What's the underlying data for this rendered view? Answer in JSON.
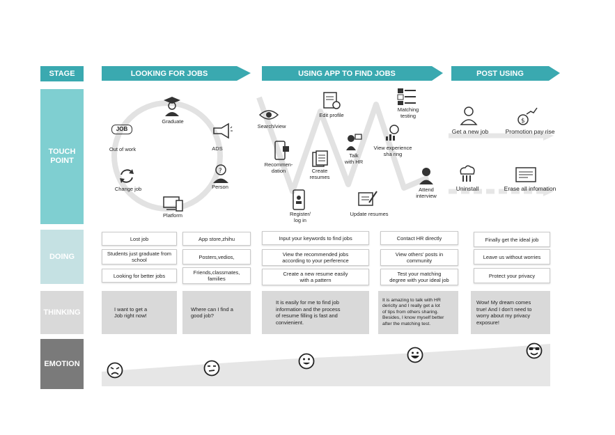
{
  "rows": {
    "stage": "STAGE",
    "touch_point": "TOUCH POINT",
    "doing": "DOING",
    "thinking": "THINKING",
    "emotion": "EMOTION"
  },
  "stages": [
    {
      "label": "LOOKING FOR JOBS"
    },
    {
      "label": "USING APP TO FIND JOBS"
    },
    {
      "label": "POST USING"
    }
  ],
  "touch_points": {
    "cycle": {
      "graduate": "Graduate",
      "ads": "ADS",
      "person": "Person",
      "platform": "Platform",
      "change_job": "Change job",
      "out_of_work": "Out of work",
      "job_badge": "JOB"
    },
    "app": {
      "search_view": "Search/view",
      "recommendation": "Recommen-\ndation",
      "register": "Register/\nlog in",
      "create_resumes": "Create\nresumes",
      "edit_profile": "Edit profile",
      "talk_hr": "Talk\nwith HR",
      "update_resumes": "Update resumes",
      "matching_testing": "Matching\ntesting",
      "view_experience": "View experience\nsha ring",
      "attend_interview": "Attend\ninterview"
    },
    "post": {
      "get_job": "Get a new job",
      "promotion": "Promotion pay rise",
      "uninstall": "Uninstall",
      "erase": "Erase all infomation"
    }
  },
  "doing": {
    "col1": [
      "Lost job",
      "Students just graduate from school",
      "Looking for better jobs"
    ],
    "col2": [
      "App store,zhihu",
      "Posters,vedios,",
      "Friends,classmates,\nfamilies"
    ],
    "col3": [
      "Input your keywords to find jobs",
      "View the recommended jobs\naccording to your perference",
      "Create a new resume easily\nwith  a pattern"
    ],
    "col4": [
      "Contact HR directly",
      "View others' posts in\ncommunity",
      "Test your matching\ndegree with your ideal job"
    ],
    "col5": [
      "Finally get the ideal job",
      "Leave us without worries",
      "Protect your privacy"
    ]
  },
  "thinking": [
    "I want to get a\nJob right now!",
    "Where can I find a\ngood job?",
    "It is easily for me to find job\ninformation and the process\nof resume filling is fast and\nconvienient.",
    "It is amazing to talk with HR\ndericlty and I really get a lot\nof tips from others sharing.\nBesides, I know myself better\nafter the matching test.",
    "Wow! My dream comes\ntrue! And I don't need to\nworry about my privacy\nexposure!"
  ],
  "emotion": {
    "levels": [
      1,
      2,
      3,
      4,
      5
    ],
    "faces": [
      "angry-face-icon",
      "annoyed-face-icon",
      "neutral-smile-face-icon",
      "grin-face-icon",
      "sunglasses-face-icon"
    ]
  },
  "colors": {
    "teal_light": "#7fcfd1",
    "teal_arrow": "#3aa9b0",
    "doing_bg": "#c5e1e3",
    "thinking_bg": "#d9d9d9",
    "emotion_bg": "#7a7a7a"
  }
}
